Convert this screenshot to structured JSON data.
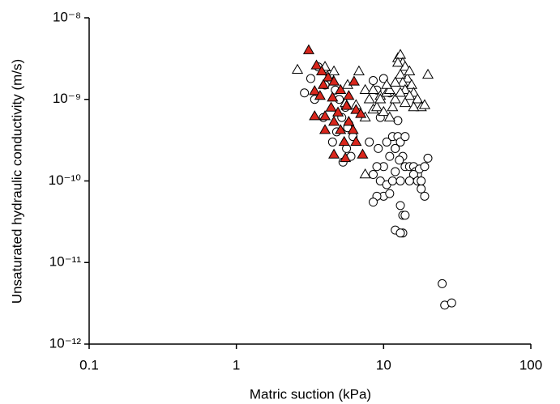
{
  "chart_data": {
    "type": "scatter",
    "xlabel": "Matric suction (kPa)",
    "ylabel": "Unsaturated hydraulic conductivity (m/s)",
    "xscale": "log",
    "yscale": "log",
    "xlim": [
      0.1,
      100
    ],
    "ylim": [
      1e-12,
      1e-08
    ],
    "xticks": [
      0.1,
      1,
      10,
      100
    ],
    "yticks": [
      {
        "value": 1e-12,
        "label": "10⁻¹²"
      },
      {
        "value": 1e-11,
        "label": "10⁻¹¹"
      },
      {
        "value": 1e-10,
        "label": "10⁻¹⁰"
      },
      {
        "value": 1e-09,
        "label": "10⁻⁹"
      },
      {
        "value": 1e-08,
        "label": "10⁻⁸"
      }
    ],
    "series": [
      {
        "marker": "circle",
        "color": "#ffffff",
        "x": [
          2.9,
          3.2,
          3.6,
          4.0,
          4.3,
          4.7,
          5.0,
          3.4,
          3.9,
          5.5,
          5.2,
          4.8,
          5.8,
          6.2,
          5.6,
          4.5,
          5.3,
          6.0,
          5.7,
          8.5,
          9.0,
          10,
          11,
          9.5,
          8.0,
          9.2,
          10.5,
          11.5,
          12,
          12.5,
          13,
          14,
          13.5,
          12.8,
          11,
          10,
          9.0,
          8.5,
          9.5,
          10.5,
          11.5,
          12,
          13,
          14,
          15,
          16,
          16.5,
          17,
          17.5,
          16,
          15,
          17,
          18,
          19,
          20,
          19,
          18,
          13,
          13.5,
          14,
          12,
          10,
          11,
          9.0,
          8.5,
          12,
          13.5,
          12.5,
          13,
          25,
          26,
          29
        ],
        "values": [
          1.2e-09,
          1.8e-09,
          2.5e-09,
          1.5e-09,
          2e-09,
          1.3e-09,
          1e-09,
          1e-09,
          6e-10,
          8e-10,
          6e-10,
          4e-10,
          5e-10,
          3.5e-10,
          2.5e-10,
          3e-10,
          1.7e-10,
          2e-10,
          4.5e-10,
          1.7e-09,
          1.3e-09,
          1.8e-09,
          1.2e-09,
          6e-10,
          3e-10,
          2.5e-10,
          3e-10,
          3.5e-10,
          2.5e-10,
          3.5e-10,
          3e-10,
          3.5e-10,
          2e-10,
          1.8e-10,
          2e-10,
          1.5e-10,
          1.5e-10,
          1.2e-10,
          1e-10,
          9e-11,
          1e-10,
          1.3e-10,
          1e-10,
          1.5e-10,
          1.5e-10,
          1.5e-10,
          1.3e-10,
          1.2e-10,
          1.4e-10,
          1.2e-10,
          1e-10,
          1e-10,
          8e-11,
          6.5e-11,
          1.9e-10,
          1.5e-10,
          1e-10,
          5e-11,
          3.8e-11,
          3.8e-11,
          2.5e-11,
          6.5e-11,
          7e-11,
          6.5e-11,
          5.5e-11,
          2.5e-10,
          2.3e-11,
          5.5e-10,
          2.3e-11,
          5.5e-12,
          3e-12,
          3.2e-12
        ]
      },
      {
        "marker": "triangle",
        "color": "#ffffff",
        "x": [
          2.6,
          4.0,
          4.6,
          5.7,
          6.8,
          7.5,
          8.0,
          8.5,
          9.0,
          9.5,
          10,
          10.5,
          11,
          11.5,
          12,
          12.5,
          13,
          13.5,
          14,
          14.5,
          15,
          15.5,
          16,
          17,
          18,
          19,
          20,
          12.5,
          13,
          13.5,
          14,
          15,
          16,
          13,
          14,
          11,
          12,
          9.5,
          10.5,
          6.5,
          7.5,
          5.5,
          8.5,
          7.5
        ],
        "values": [
          2.3e-09,
          2.5e-09,
          2.2e-09,
          1.5e-09,
          2.2e-09,
          1.2e-10,
          1e-09,
          7.5e-10,
          8e-10,
          1.1e-09,
          7e-10,
          1.2e-09,
          1.3e-09,
          8e-10,
          1e-09,
          3.2e-09,
          3.5e-09,
          2.8e-09,
          2.5e-09,
          1.8e-09,
          2.2e-09,
          1.5e-09,
          1.2e-09,
          1e-09,
          8e-10,
          8.5e-10,
          2e-09,
          2.8e-09,
          2e-09,
          1.6e-09,
          1.3e-09,
          1.1e-09,
          8e-10,
          1.2e-09,
          9e-10,
          6e-10,
          1.6e-09,
          1e-09,
          1.5e-09,
          8.5e-10,
          1.3e-09,
          9e-10,
          1.3e-09,
          6e-10
        ]
      },
      {
        "marker": "triangle",
        "color": "#d9261c",
        "x": [
          3.1,
          3.5,
          3.8,
          4.2,
          4.6,
          3.9,
          5.1,
          3.4,
          3.7,
          4.5,
          5.8,
          6.3,
          5.6,
          4.4,
          4.9,
          6.5,
          3.4,
          4.0,
          5.8,
          7.0,
          4.6,
          5.1,
          6.2,
          4.0,
          5.4,
          6.5,
          4.6,
          7.2,
          5.5
        ],
        "values": [
          4e-09,
          2.6e-09,
          2.2e-09,
          1.85e-09,
          1.65e-09,
          1.5e-09,
          1.3e-09,
          1.26e-09,
          1.1e-09,
          1.05e-09,
          1.1e-09,
          1.65e-09,
          8.3e-10,
          7.9e-10,
          6.9e-10,
          7.4e-10,
          6.2e-10,
          6.2e-10,
          5.3e-10,
          6.6e-10,
          5.3e-10,
          4.2e-10,
          4.2e-10,
          4.2e-10,
          3e-10,
          3e-10,
          2.1e-10,
          2.1e-10,
          1.9e-10
        ]
      }
    ]
  }
}
